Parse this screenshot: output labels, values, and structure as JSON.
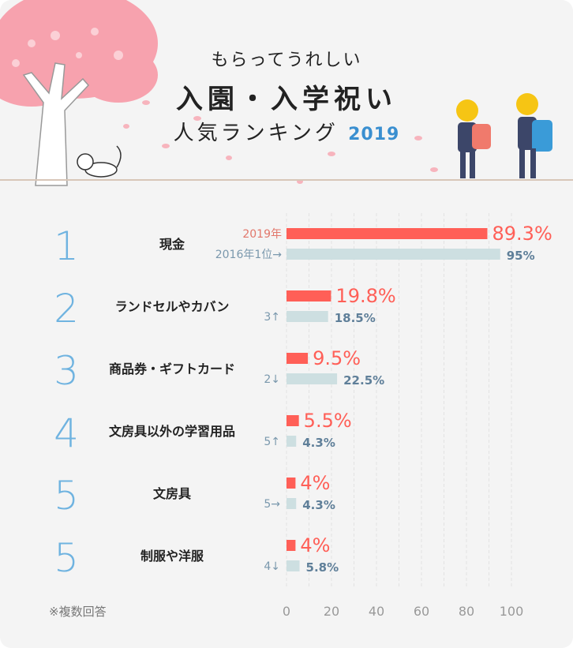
{
  "header": {
    "line1": "もらってうれしい",
    "line2": "入園・入学祝い",
    "line3": "人気ランキング",
    "year": "2019"
  },
  "note": "※複数回答",
  "colors": {
    "current": "#ff5f57",
    "previous": "#cddfe1",
    "rank": "#6fb3e0",
    "prev_label": "#7a98ad"
  },
  "chart_data": {
    "type": "bar",
    "orientation": "horizontal",
    "xlim": [
      0,
      100
    ],
    "xticks": [
      0,
      20,
      40,
      60,
      80,
      100
    ],
    "grid": "vertical dashed every 10",
    "legend": {
      "current": "2019年",
      "previous": "2016年1位→"
    },
    "categories": [
      {
        "rank": "1",
        "label": "現金",
        "value_2019": 89.3,
        "value_2019_label": "89.3%",
        "value_2016": 95,
        "value_2016_label": "95%",
        "prev_rank": ""
      },
      {
        "rank": "2",
        "label": "ランドセルやカバン",
        "value_2019": 19.8,
        "value_2019_label": "19.8%",
        "value_2016": 18.5,
        "value_2016_label": "18.5%",
        "prev_rank": "3↑"
      },
      {
        "rank": "3",
        "label": "商品券・ギフトカード",
        "value_2019": 9.5,
        "value_2019_label": "9.5%",
        "value_2016": 22.5,
        "value_2016_label": "22.5%",
        "prev_rank": "2↓"
      },
      {
        "rank": "4",
        "label": "文房具以外の学習用品",
        "value_2019": 5.5,
        "value_2019_label": "5.5%",
        "value_2016": 4.3,
        "value_2016_label": "4.3%",
        "prev_rank": "5↑"
      },
      {
        "rank": "5",
        "label": "文房具",
        "value_2019": 4,
        "value_2019_label": "4%",
        "value_2016": 4.3,
        "value_2016_label": "4.3%",
        "prev_rank": "5→"
      },
      {
        "rank": "5",
        "label": "制服や洋服",
        "value_2019": 4,
        "value_2019_label": "4%",
        "value_2016": 5.8,
        "value_2016_label": "5.8%",
        "prev_rank": "4↓"
      }
    ]
  }
}
